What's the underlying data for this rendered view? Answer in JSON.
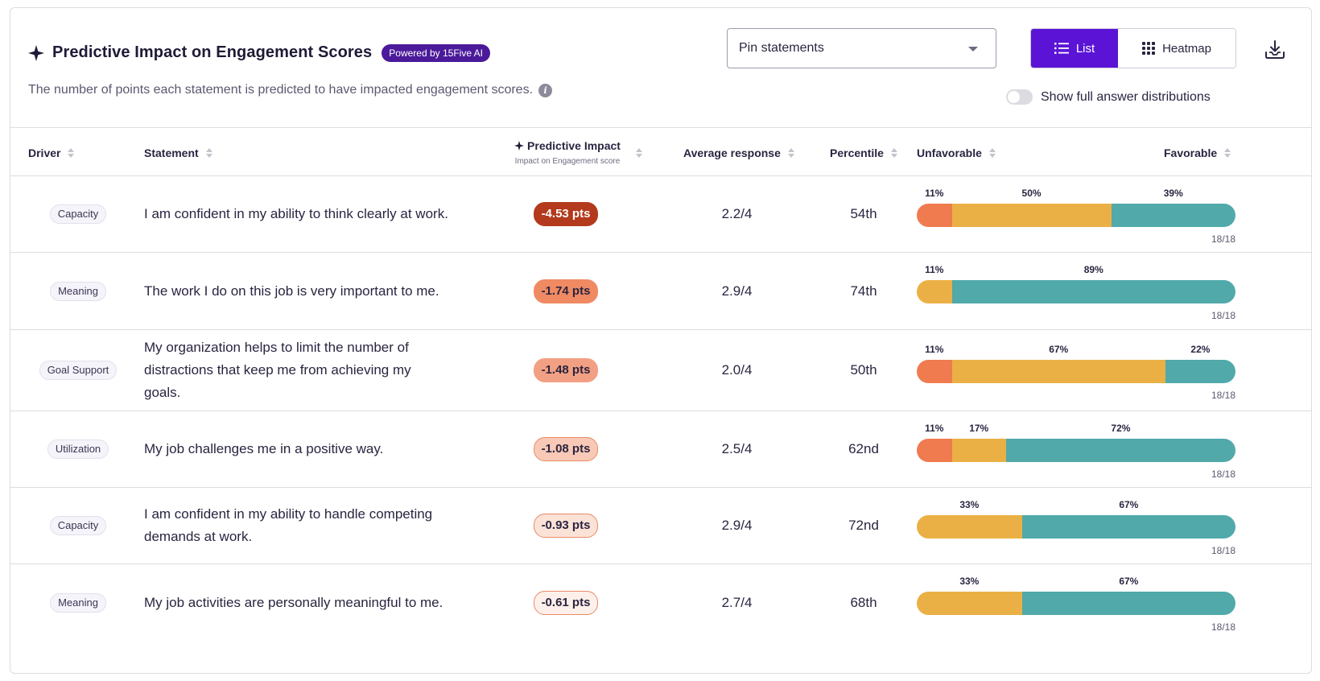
{
  "header": {
    "title": "Predictive Impact on Engagement Scores",
    "badge": "Powered by 15Five AI",
    "subtitle": "The number of points each statement is predicted to have impacted engagement scores.",
    "info_icon": "info-icon"
  },
  "controls": {
    "pin_select_value": "Pin statements",
    "view_list_label": "List",
    "view_heatmap_label": "Heatmap",
    "active_view": "List",
    "download_icon": "download-icon",
    "toggle_label": "Show full answer distributions",
    "toggle_on": false
  },
  "table": {
    "columns": {
      "driver": "Driver",
      "statement": "Statement",
      "predictive_impact": "Predictive Impact",
      "predictive_impact_sub": "Impact on Engagement score",
      "average_response": "Average response",
      "percentile": "Percentile",
      "unfavorable": "Unfavorable",
      "favorable": "Favorable"
    },
    "rows": [
      {
        "driver": "Capacity",
        "statement": "I am confident in my ability to think clearly at work.",
        "impact": "-4.53 pts",
        "impact_style": {
          "bg": "#b33a1c",
          "fg": "#ffffff",
          "border": "#b33a1c"
        },
        "average": "2.2/4",
        "percentile": "54th",
        "distribution": [
          {
            "label": "11%",
            "value": 11,
            "color": "#ef7b4f"
          },
          {
            "label": "50%",
            "value": 50,
            "color": "#ebb045"
          },
          {
            "label": "39%",
            "value": 39,
            "color": "#51a9aa"
          }
        ],
        "count": "18/18"
      },
      {
        "driver": "Meaning",
        "statement": "The work I do on this job is very important to me.",
        "impact": "-1.74 pts",
        "impact_style": {
          "bg": "#ef8a63",
          "fg": "#2b2440",
          "border": "#ef8a63"
        },
        "average": "2.9/4",
        "percentile": "74th",
        "distribution": [
          {
            "label": "11%",
            "value": 11,
            "color": "#ebb045"
          },
          {
            "label": "89%",
            "value": 89,
            "color": "#51a9aa"
          }
        ],
        "count": "18/18"
      },
      {
        "driver": "Goal Support",
        "statement": "My organization helps to limit the number of distractions that keep me from achieving my goals.",
        "impact": "-1.48 pts",
        "impact_style": {
          "bg": "#f2a083",
          "fg": "#2b2440",
          "border": "#f2a083"
        },
        "average": "2.0/4",
        "percentile": "50th",
        "distribution": [
          {
            "label": "11%",
            "value": 11,
            "color": "#ef7b4f"
          },
          {
            "label": "67%",
            "value": 67,
            "color": "#ebb045"
          },
          {
            "label": "22%",
            "value": 22,
            "color": "#51a9aa"
          }
        ],
        "count": "18/18"
      },
      {
        "driver": "Utilization",
        "statement": "My job challenges me in a positive way.",
        "impact": "-1.08 pts",
        "impact_style": {
          "bg": "#f8c9b6",
          "fg": "#2b2440",
          "border": "#e98b67"
        },
        "average": "2.5/4",
        "percentile": "62nd",
        "distribution": [
          {
            "label": "11%",
            "value": 11,
            "color": "#ef7b4f"
          },
          {
            "label": "17%",
            "value": 17,
            "color": "#ebb045"
          },
          {
            "label": "72%",
            "value": 72,
            "color": "#51a9aa"
          }
        ],
        "count": "18/18"
      },
      {
        "driver": "Capacity",
        "statement": "I am confident in my ability to handle competing demands at work.",
        "impact": "-0.93 pts",
        "impact_style": {
          "bg": "#fbe2d7",
          "fg": "#2b2440",
          "border": "#e98b67"
        },
        "average": "2.9/4",
        "percentile": "72nd",
        "distribution": [
          {
            "label": "33%",
            "value": 33,
            "color": "#ebb045"
          },
          {
            "label": "67%",
            "value": 67,
            "color": "#51a9aa"
          }
        ],
        "count": "18/18"
      },
      {
        "driver": "Meaning",
        "statement": "My job activities are personally meaningful to me.",
        "impact": "-0.61 pts",
        "impact_style": {
          "bg": "#fdf0ea",
          "fg": "#2b2440",
          "border": "#e98b67"
        },
        "average": "2.7/4",
        "percentile": "68th",
        "distribution": [
          {
            "label": "33%",
            "value": 33,
            "color": "#ebb045"
          },
          {
            "label": "67%",
            "value": 67,
            "color": "#51a9aa"
          }
        ],
        "count": "18/18"
      }
    ]
  }
}
